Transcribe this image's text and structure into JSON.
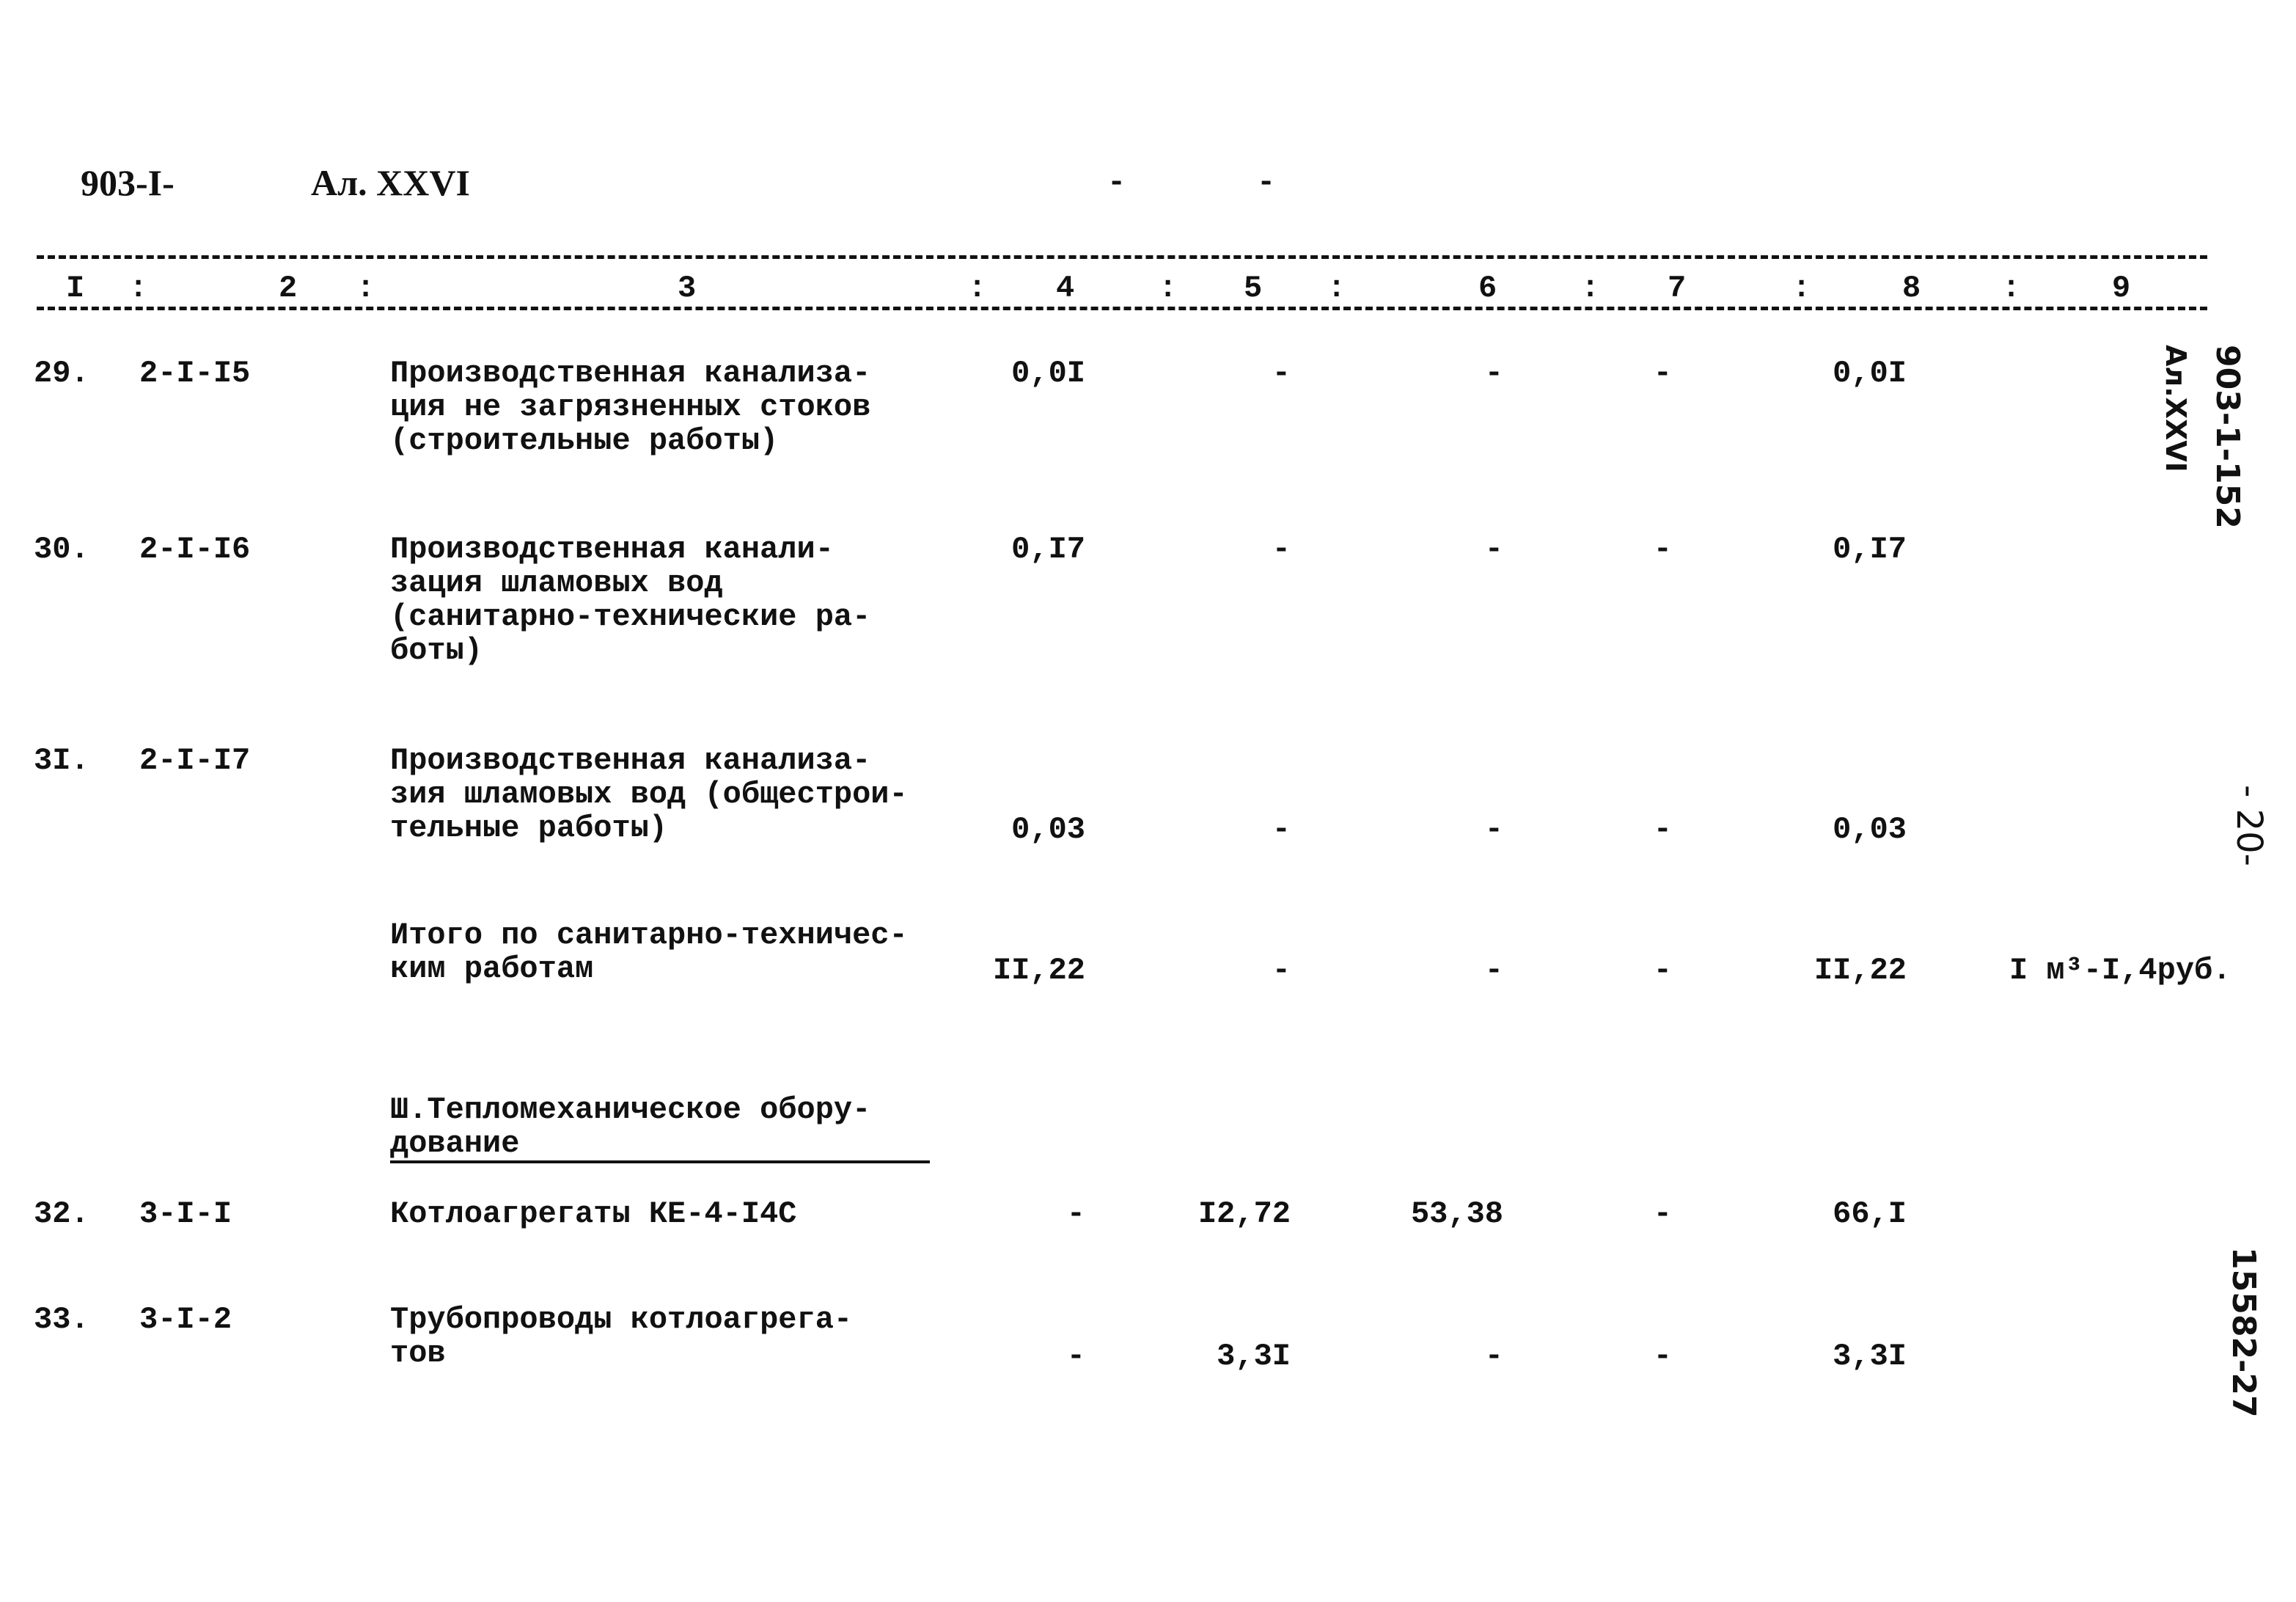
{
  "header": {
    "doc_code": "903-I-",
    "album": "Ал. XXVI",
    "mark1": "-",
    "mark2": "-"
  },
  "columns": [
    "I",
    "2",
    "3",
    "4",
    "5",
    "6",
    "7",
    "8",
    "9"
  ],
  "rows": [
    {
      "num": "29.",
      "code": "2-I-I5",
      "text": "Производственная канализа-\nция не загрязненных стоков\n(строительные работы)",
      "c4": "0,0I",
      "c5": "-",
      "c6": "-",
      "c7": "-",
      "c8": "0,0I",
      "c9": ""
    },
    {
      "num": "30.",
      "code": "2-I-I6",
      "text": "Производственная канали-\nзация шламовых вод\n(санитарно-технические ра-\nботы)",
      "c4": "0,I7",
      "c5": "-",
      "c6": "-",
      "c7": "-",
      "c8": "0,I7",
      "c9": ""
    },
    {
      "num": "3I.",
      "code": "2-I-I7",
      "text": "Производственная канализа-\nзия шламовых вод (общестрои-\nтельные работы)",
      "c4": "0,03",
      "c5": "-",
      "c6": "-",
      "c7": "-",
      "c8": "0,03",
      "c9": ""
    },
    {
      "num": "",
      "code": "",
      "text": "Итого по санитарно-техничес-\nким работам",
      "c4": "II,22",
      "c5": "-",
      "c6": "-",
      "c7": "-",
      "c8": "II,22",
      "c9": "I м³-I,4руб."
    },
    {
      "num": "32.",
      "code": "3-I-I",
      "text": "Котлоагрегаты КЕ-4-I4С",
      "c4": "-",
      "c5": "I2,72",
      "c6": "53,38",
      "c7": "-",
      "c8": "66,I",
      "c9": ""
    },
    {
      "num": "33.",
      "code": "3-I-2",
      "text": "Трубопроводы котлоагрега-\nтов",
      "c4": "-",
      "c5": "3,3I",
      "c6": "-",
      "c7": "-",
      "c8": "3,3I",
      "c9": ""
    }
  ],
  "section_title": "Ш.Тепломеханическое обору-\nдование",
  "stamps": {
    "top_code": "903-1-152",
    "top_album": "Ал.XXVI",
    "page": "- 20-",
    "bottom": "15582-27"
  }
}
